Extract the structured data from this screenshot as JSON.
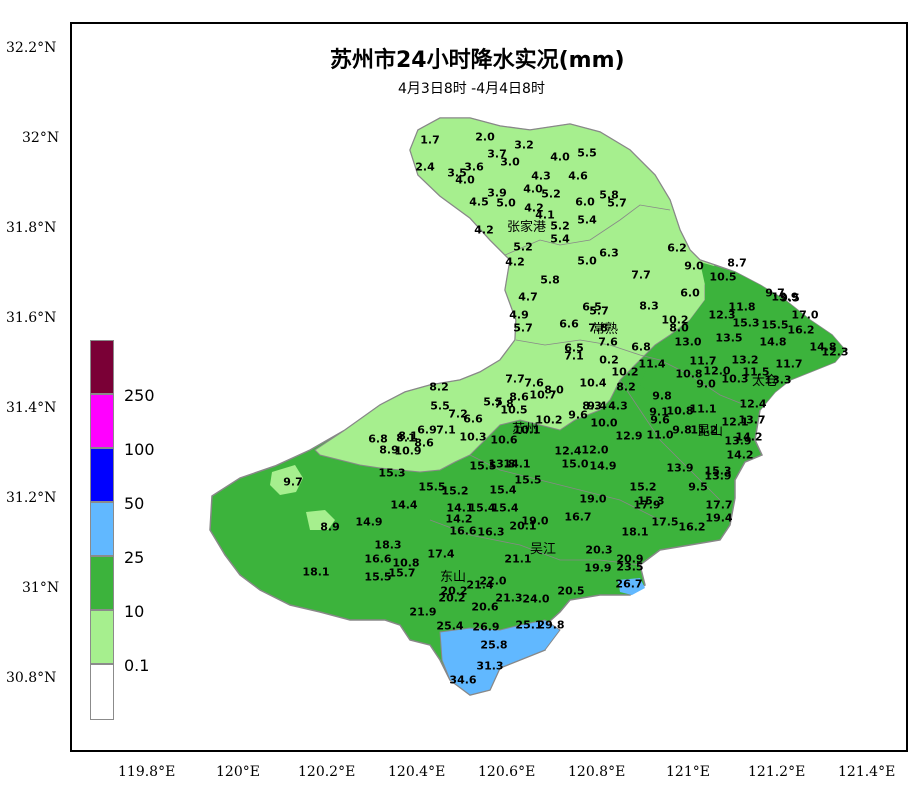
{
  "title": "苏州市24小时降水实况(mm)",
  "subtitle": "4月3日8时 -4月4日8时",
  "lat_labels": [
    "32.2°N",
    "32°N",
    "31.8°N",
    "31.6°N",
    "31.4°N",
    "31.2°N",
    "31°N",
    "30.8°N"
  ],
  "lon_labels": [
    "119.8°E",
    "120°E",
    "120.2°E",
    "120.4°E",
    "120.6°E",
    "120.8°E",
    "121°E",
    "121.2°E",
    "121.4°E"
  ],
  "legend": {
    "labels": [
      "250",
      "100",
      "50",
      "25",
      "10",
      "0.1"
    ],
    "colors": [
      "#7a0036",
      "#ff00ff",
      "#0000ff",
      "#61b8ff",
      "#3cb33c",
      "#a6ef8e",
      "#ffffff"
    ]
  },
  "colors": {
    "light_green": "#a6ef8e",
    "mid_green": "#3cb33c",
    "light_blue": "#61b8ff",
    "border": "#888888"
  },
  "cities": [
    "张家港",
    "常熟",
    "太仓",
    "苏州",
    "昆山",
    "吴江",
    "东山"
  ],
  "values": [
    "1.7",
    "2.0",
    "3.2",
    "2.4",
    "3.6",
    "3.7",
    "3.0",
    "4.0",
    "5.5",
    "3.5",
    "4.0",
    "4.3",
    "4.6",
    "3.9",
    "4.0",
    "5.2",
    "4.5",
    "5.0",
    "6.0",
    "5.8",
    "5.7",
    "4.2",
    "4.1",
    "5.4",
    "4.2",
    "5.2",
    "5.4",
    "5.2",
    "6.3",
    "6.2",
    "4.2",
    "5.0",
    "7.7",
    "9.0",
    "8.7",
    "5.8",
    "10.5",
    "6.0",
    "9.7",
    "9.5",
    "4.7",
    "6.5",
    "8.3",
    "13.9",
    "11.8",
    "4.9",
    "5.7",
    "10.2",
    "12.3",
    "17.0",
    "5.7",
    "6.6",
    "7.8",
    "8.0",
    "15.3",
    "15.5",
    "16.2",
    "6.5",
    "7.6",
    "6.8",
    "13.0",
    "13.5",
    "14.8",
    "14.8",
    "7.1",
    "0.2",
    "12.3",
    "13.2",
    "11.7",
    "11.4",
    "11.7",
    "10.2",
    "12.0",
    "11.5",
    "7.7",
    "7.6",
    "10.4",
    "10.8",
    "9.0",
    "10.3",
    "13.3",
    "8.2",
    "8.0",
    "8.2",
    "5.5",
    "8.6",
    "10.7",
    "8.3",
    "9.8",
    "5.5",
    "7.8",
    "9.6",
    "9.4",
    "4.3",
    "9.1",
    "10.8",
    "11.1",
    "12.4",
    "6.6",
    "7.2",
    "10.5",
    "9.6",
    "9.8",
    "12.1",
    "13.7",
    "6.9",
    "7.1",
    "10.2",
    "8.1",
    "10.1",
    "11.2",
    "10.0",
    "6.8",
    "8.1",
    "8.6",
    "10.3",
    "10.6",
    "12.9",
    "11.0",
    "13.9",
    "14.2",
    "8.9",
    "10.9",
    "12.4",
    "12.0",
    "14.2",
    "13.9",
    "15.3",
    "13.8",
    "15.3",
    "15.5",
    "14.1",
    "15.0",
    "14.9",
    "13.9",
    "9.7",
    "15.5",
    "15.2",
    "15.4",
    "15.5",
    "15.2",
    "9.5",
    "14.4",
    "19.0",
    "15.3",
    "17.7",
    "14.1",
    "15.4",
    "15.4",
    "16.7",
    "17.9",
    "19.4",
    "14.9",
    "14.2",
    "20.1",
    "19.0",
    "17.5",
    "16.2",
    "8.9",
    "16.6",
    "16.3",
    "18.1",
    "18.3",
    "17.4",
    "21.1",
    "20.3",
    "20.9",
    "16.6",
    "10.8",
    "15.7",
    "19.9",
    "23.5",
    "18.1",
    "15.5",
    "20.2",
    "21.4",
    "22.0",
    "26.7",
    "20.2",
    "20.5",
    "21.9",
    "20.6",
    "21.3",
    "24.0",
    "25.4",
    "26.9",
    "25.1",
    "29.8",
    "25.8",
    "31.3",
    "34.6"
  ],
  "city_markers": [
    "张家港",
    "常熟",
    "太仓",
    "苏州",
    "昆山",
    "吴江",
    "东山"
  ]
}
